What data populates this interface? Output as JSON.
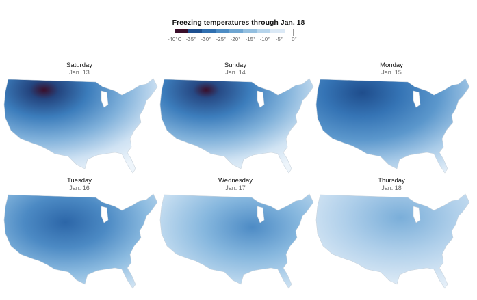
{
  "legend": {
    "title": "Freezing temperatures through Jan. 18",
    "ticks": [
      "-40°C",
      "-35°",
      "-30°",
      "-25°",
      "-20°",
      "-15°",
      "-10°",
      "-5°",
      "0°"
    ],
    "colors": [
      "#3a0e2a",
      "#1d4f8f",
      "#2f6fb0",
      "#4d8cc4",
      "#6fa6d2",
      "#93bfe0",
      "#b7d5ec",
      "#dbe9f6"
    ]
  },
  "panels": [
    {
      "day": "Saturday",
      "date": "Jan. 13"
    },
    {
      "day": "Sunday",
      "date": "Jan. 14"
    },
    {
      "day": "Monday",
      "date": "Jan. 15"
    },
    {
      "day": "Tuesday",
      "date": "Jan. 16"
    },
    {
      "day": "Wednesday",
      "date": "Jan. 17"
    },
    {
      "day": "Thursday",
      "date": "Jan. 18"
    }
  ]
}
